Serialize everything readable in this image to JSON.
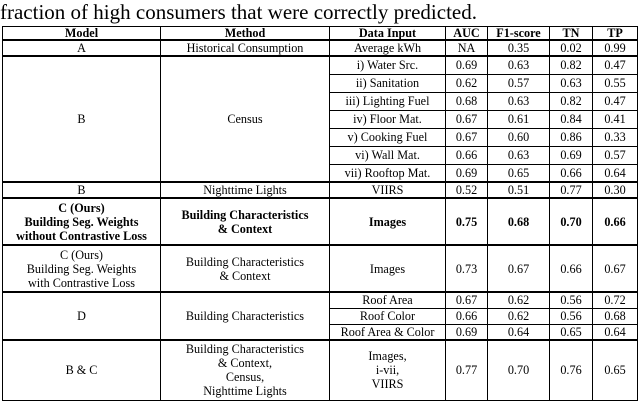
{
  "caption": "fraction of high consumers that were correctly predicted.",
  "table": {
    "headers": [
      "Model",
      "Method",
      "Data Input",
      "AUC",
      "F1-score",
      "TN",
      "TP"
    ],
    "rows": {
      "a": {
        "model": "A",
        "method": "Historical Consumption",
        "input": "Average kWh",
        "auc": "NA",
        "f1": "0.35",
        "tn": "0.02",
        "tp": "0.99"
      },
      "b_census": {
        "model": "B",
        "method": "Census",
        "items": [
          {
            "input": "i) Water Src.",
            "auc": "0.69",
            "f1": "0.63",
            "tn": "0.82",
            "tp": "0.47"
          },
          {
            "input": "ii) Sanitation",
            "auc": "0.62",
            "f1": "0.57",
            "tn": "0.63",
            "tp": "0.55"
          },
          {
            "input": "iii) Lighting Fuel",
            "auc": "0.68",
            "f1": "0.63",
            "tn": "0.82",
            "tp": "0.47"
          },
          {
            "input": "iv) Floor Mat.",
            "auc": "0.67",
            "f1": "0.61",
            "tn": "0.84",
            "tp": "0.41"
          },
          {
            "input": "v) Cooking Fuel",
            "auc": "0.67",
            "f1": "0.60",
            "tn": "0.86",
            "tp": "0.33"
          },
          {
            "input": "vi) Wall Mat.",
            "auc": "0.66",
            "f1": "0.63",
            "tn": "0.69",
            "tp": "0.57"
          },
          {
            "input": "vii) Rooftop Mat.",
            "auc": "0.69",
            "f1": "0.65",
            "tn": "0.66",
            "tp": "0.64"
          }
        ]
      },
      "b_ntl": {
        "model": "B",
        "method": "Nighttime Lights",
        "input": "VIIRS",
        "auc": "0.52",
        "f1": "0.51",
        "tn": "0.77",
        "tp": "0.30"
      },
      "c_nocl": {
        "model": [
          "C (Ours)",
          "Building Seg. Weights",
          "without Contrastive Loss"
        ],
        "method": [
          "Building Characteristics",
          "& Context"
        ],
        "input": "Images",
        "auc": "0.75",
        "f1": "0.68",
        "tn": "0.70",
        "tp": "0.66"
      },
      "c_cl": {
        "model": [
          "C (Ours)",
          "Building Seg. Weights",
          "with Contrastive Loss"
        ],
        "method": [
          "Building Characteristics",
          "& Context"
        ],
        "input": "Images",
        "auc": "0.73",
        "f1": "0.67",
        "tn": "0.66",
        "tp": "0.67"
      },
      "d": {
        "model": "D",
        "method": "Building Characteristics",
        "items": [
          {
            "input": "Roof Area",
            "auc": "0.67",
            "f1": "0.62",
            "tn": "0.56",
            "tp": "0.72"
          },
          {
            "input": "Roof Color",
            "auc": "0.66",
            "f1": "0.62",
            "tn": "0.56",
            "tp": "0.68"
          },
          {
            "input": "Roof Area & Color",
            "auc": "0.69",
            "f1": "0.64",
            "tn": "0.65",
            "tp": "0.64"
          }
        ]
      },
      "bc": {
        "model": "B & C",
        "method": [
          "Building Characteristics",
          "& Context,",
          "Census,",
          "Nighttime Lights"
        ],
        "input": [
          "Images,",
          "i-vii,",
          "VIIRS"
        ],
        "auc": "0.77",
        "f1": "0.70",
        "tn": "0.76",
        "tp": "0.65"
      }
    }
  }
}
